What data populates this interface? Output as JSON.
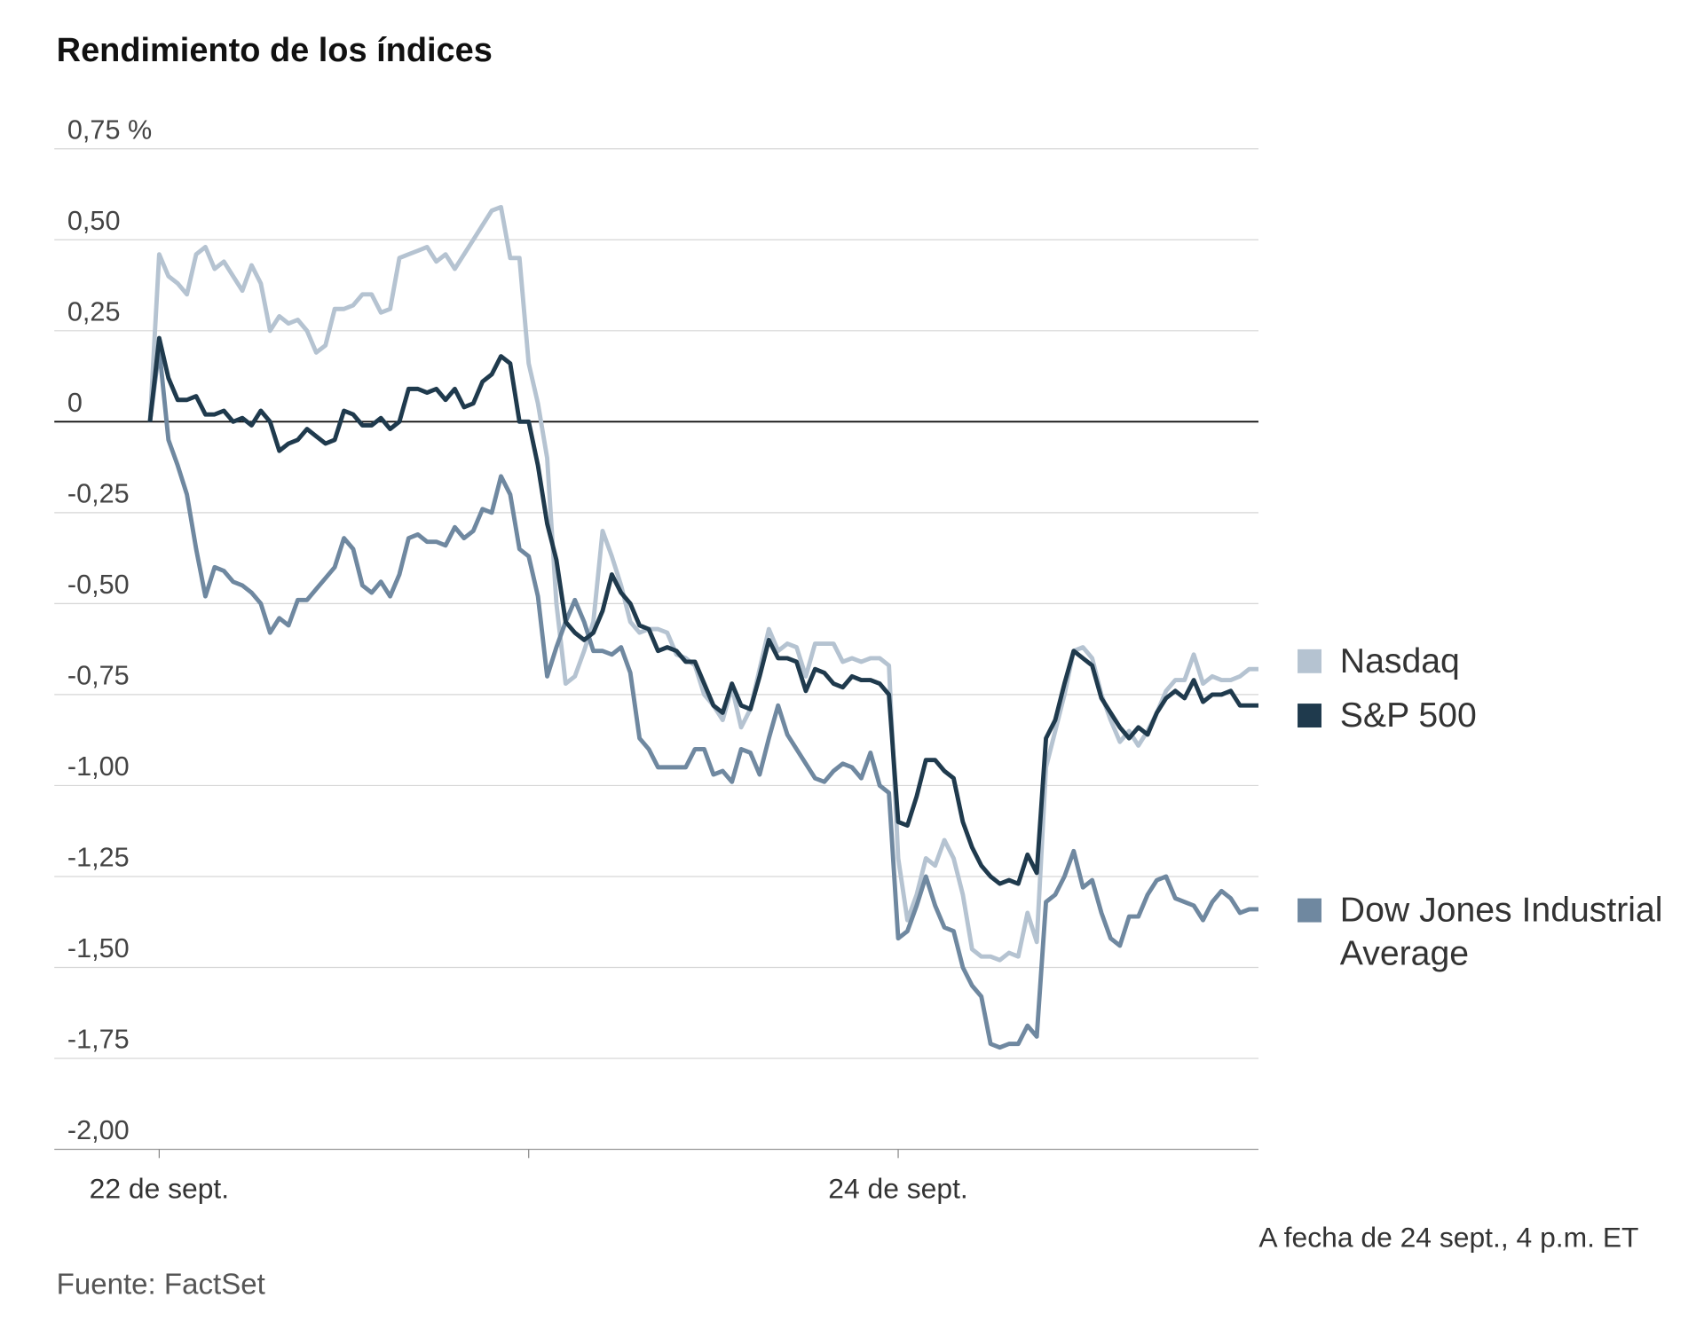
{
  "chart_data": {
    "type": "line",
    "title": "Rendimiento de los índices",
    "note": "A fecha de 24 sept., 4 p.m. ET",
    "source": "Fuente: FactSet",
    "categories": [
      null,
      "22 de sept.",
      null,
      null,
      null,
      null,
      null,
      null,
      null,
      null,
      null,
      null,
      null,
      null,
      null,
      null,
      null,
      null,
      null,
      null,
      null,
      null,
      null,
      null,
      null,
      null,
      null,
      null,
      null,
      null,
      null,
      null,
      null,
      null,
      null,
      null,
      null,
      null,
      null,
      null,
      null,
      null,
      null,
      null,
      null,
      null,
      null,
      null,
      null,
      null,
      null,
      null,
      null,
      null,
      null,
      null,
      null,
      null,
      null,
      null,
      null,
      null,
      null,
      null,
      null,
      null,
      null,
      null,
      null,
      null,
      null,
      null,
      null,
      null,
      null,
      null,
      null,
      null,
      null,
      null,
      null,
      "24 de sept.",
      null,
      null,
      null,
      null,
      null,
      null,
      null,
      null,
      null,
      null,
      null,
      null,
      null,
      null,
      null,
      null,
      null,
      null,
      null,
      null,
      null,
      null,
      null,
      null,
      null,
      null,
      null,
      null,
      null,
      null,
      null,
      null,
      null,
      null,
      null,
      null,
      null,
      null,
      null
    ],
    "series": [
      {
        "name": "Nasdaq",
        "color": "#b5c3d1",
        "values": [
          0,
          0.46,
          0.4,
          0.38,
          0.35,
          0.46,
          0.48,
          0.42,
          0.44,
          0.4,
          0.36,
          0.43,
          0.38,
          0.25,
          0.29,
          0.27,
          0.28,
          0.25,
          0.19,
          0.21,
          0.31,
          0.31,
          0.32,
          0.35,
          0.35,
          0.3,
          0.31,
          0.45,
          0.46,
          0.47,
          0.48,
          0.44,
          0.46,
          0.42,
          0.46,
          0.5,
          0.54,
          0.58,
          0.59,
          0.45,
          0.45,
          0.16,
          0.05,
          -0.1,
          -0.5,
          -0.72,
          -0.7,
          -0.63,
          -0.55,
          -0.3,
          -0.37,
          -0.45,
          -0.55,
          -0.58,
          -0.57,
          -0.57,
          -0.58,
          -0.64,
          -0.65,
          -0.67,
          -0.75,
          -0.78,
          -0.82,
          -0.73,
          -0.84,
          -0.79,
          -0.68,
          -0.57,
          -0.63,
          -0.61,
          -0.62,
          -0.7,
          -0.61,
          -0.61,
          -0.61,
          -0.66,
          -0.65,
          -0.66,
          -0.65,
          -0.65,
          -0.67,
          -1.2,
          -1.37,
          -1.3,
          -1.2,
          -1.22,
          -1.15,
          -1.2,
          -1.3,
          -1.45,
          -1.47,
          -1.47,
          -1.48,
          -1.46,
          -1.47,
          -1.35,
          -1.43,
          -0.95,
          -0.85,
          -0.75,
          -0.63,
          -0.62,
          -0.65,
          -0.75,
          -0.82,
          -0.88,
          -0.85,
          -0.89,
          -0.85,
          -0.8,
          -0.74,
          -0.71,
          -0.71,
          -0.64,
          -0.72,
          -0.7,
          -0.71,
          -0.71,
          -0.7,
          -0.68,
          -0.68
        ]
      },
      {
        "name": "S&P 500",
        "color": "#1f3a4d",
        "values": [
          0,
          0.23,
          0.12,
          0.06,
          0.06,
          0.07,
          0.02,
          0.02,
          0.03,
          0.0,
          0.01,
          -0.01,
          0.03,
          0.0,
          -0.08,
          -0.06,
          -0.05,
          -0.02,
          -0.04,
          -0.06,
          -0.05,
          0.03,
          0.02,
          -0.01,
          -0.01,
          0.01,
          -0.02,
          0.0,
          0.09,
          0.09,
          0.08,
          0.09,
          0.06,
          0.09,
          0.04,
          0.05,
          0.11,
          0.13,
          0.18,
          0.16,
          0.0,
          0.0,
          -0.12,
          -0.28,
          -0.38,
          -0.55,
          -0.58,
          -0.6,
          -0.58,
          -0.52,
          -0.42,
          -0.47,
          -0.5,
          -0.56,
          -0.57,
          -0.63,
          -0.62,
          -0.63,
          -0.66,
          -0.66,
          -0.72,
          -0.78,
          -0.8,
          -0.72,
          -0.78,
          -0.79,
          -0.7,
          -0.6,
          -0.65,
          -0.65,
          -0.66,
          -0.74,
          -0.68,
          -0.69,
          -0.72,
          -0.73,
          -0.7,
          -0.71,
          -0.71,
          -0.72,
          -0.75,
          -1.1,
          -1.11,
          -1.03,
          -0.93,
          -0.93,
          -0.96,
          -0.98,
          -1.1,
          -1.17,
          -1.22,
          -1.25,
          -1.27,
          -1.26,
          -1.27,
          -1.19,
          -1.24,
          -0.87,
          -0.82,
          -0.72,
          -0.63,
          -0.65,
          -0.67,
          -0.76,
          -0.8,
          -0.84,
          -0.87,
          -0.84,
          -0.86,
          -0.8,
          -0.76,
          -0.74,
          -0.76,
          -0.71,
          -0.77,
          -0.75,
          -0.75,
          -0.74,
          -0.78,
          -0.78,
          -0.78
        ]
      },
      {
        "name": "Dow Jones Industrial Average",
        "color": "#6f88a0",
        "values": [
          0,
          0.2,
          -0.05,
          -0.12,
          -0.2,
          -0.35,
          -0.48,
          -0.4,
          -0.41,
          -0.44,
          -0.45,
          -0.47,
          -0.5,
          -0.58,
          -0.54,
          -0.56,
          -0.49,
          -0.49,
          -0.46,
          -0.43,
          -0.4,
          -0.32,
          -0.35,
          -0.45,
          -0.47,
          -0.44,
          -0.48,
          -0.42,
          -0.32,
          -0.31,
          -0.33,
          -0.33,
          -0.34,
          -0.29,
          -0.32,
          -0.3,
          -0.24,
          -0.25,
          -0.15,
          -0.2,
          -0.35,
          -0.37,
          -0.48,
          -0.7,
          -0.62,
          -0.55,
          -0.49,
          -0.55,
          -0.63,
          -0.63,
          -0.64,
          -0.62,
          -0.69,
          -0.87,
          -0.9,
          -0.95,
          -0.95,
          -0.95,
          -0.95,
          -0.9,
          -0.9,
          -0.97,
          -0.96,
          -0.99,
          -0.9,
          -0.91,
          -0.97,
          -0.87,
          -0.78,
          -0.86,
          -0.9,
          -0.94,
          -0.98,
          -0.99,
          -0.96,
          -0.94,
          -0.95,
          -0.98,
          -0.91,
          -1.0,
          -1.02,
          -1.42,
          -1.4,
          -1.33,
          -1.25,
          -1.33,
          -1.39,
          -1.4,
          -1.5,
          -1.55,
          -1.58,
          -1.71,
          -1.72,
          -1.71,
          -1.71,
          -1.66,
          -1.69,
          -1.32,
          -1.3,
          -1.25,
          -1.18,
          -1.28,
          -1.26,
          -1.35,
          -1.42,
          -1.44,
          -1.36,
          -1.36,
          -1.3,
          -1.26,
          -1.25,
          -1.31,
          -1.32,
          -1.33,
          -1.37,
          -1.32,
          -1.29,
          -1.31,
          -1.35,
          -1.34,
          -1.34
        ]
      }
    ],
    "ylim": [
      -2,
      0.75
    ],
    "yticks": [
      {
        "value": 0.75,
        "label": "0,75 %"
      },
      {
        "value": 0.5,
        "label": "0,50"
      },
      {
        "value": 0.25,
        "label": "0,25"
      },
      0,
      {
        "value": -0.25,
        "label": "-0,25"
      },
      {
        "value": -0.5,
        "label": "-0,50"
      },
      {
        "value": -0.75,
        "label": "-0,75"
      },
      {
        "value": -1,
        "label": "-1,00"
      },
      {
        "value": -1.25,
        "label": "-1,25"
      },
      {
        "value": -1.5,
        "label": "-1,50"
      },
      {
        "value": -1.75,
        "label": "-1,75"
      },
      {
        "value": -2,
        "label": "-2,00"
      }
    ],
    "grid": true
  }
}
